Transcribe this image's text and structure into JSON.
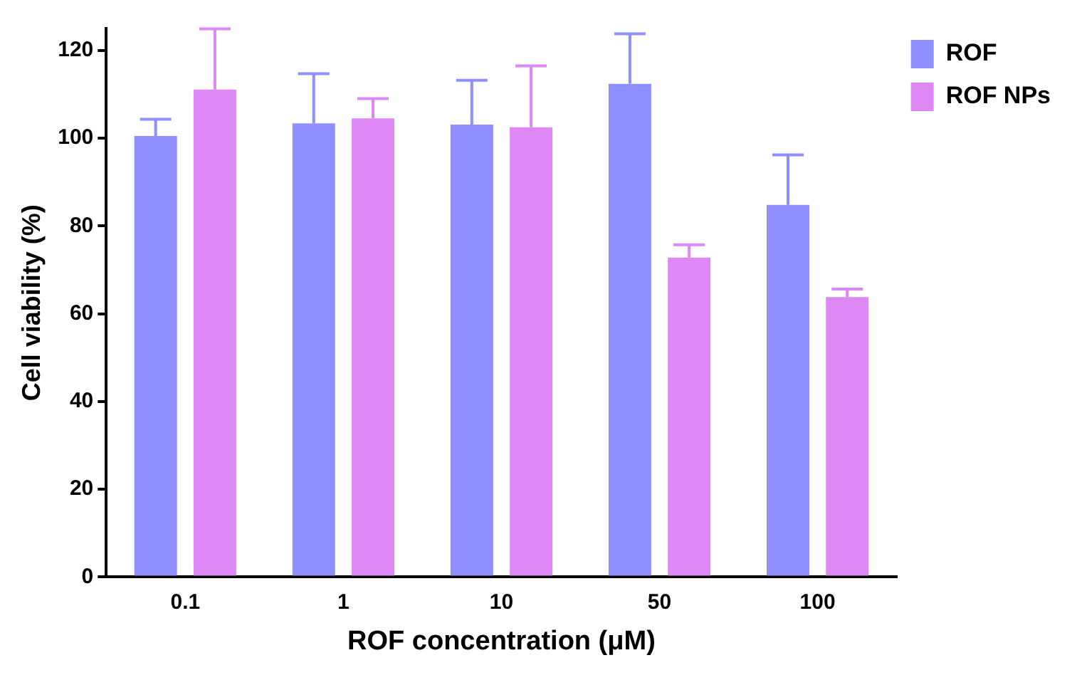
{
  "chart_data": {
    "type": "bar",
    "xlabel": "ROF concentration (μM)",
    "ylabel": "Cell viability (%)",
    "categories": [
      "0.1",
      "1",
      "10",
      "50",
      "100"
    ],
    "series": [
      {
        "name": "ROF",
        "color": "#8f8fff",
        "values": [
          100.5,
          103.4,
          103.1,
          112.4,
          84.8
        ],
        "errors": [
          [
            100.5,
            104.3
          ],
          [
            103.4,
            114.7
          ],
          [
            103.1,
            113.2
          ],
          [
            112.4,
            123.8
          ],
          [
            84.8,
            96.2
          ]
        ]
      },
      {
        "name": "ROF NPs",
        "color": "#dd88f5",
        "values": [
          111.1,
          104.5,
          102.5,
          72.8,
          63.8
        ],
        "errors": [
          [
            111.1,
            124.9
          ],
          [
            104.5,
            109.0
          ],
          [
            102.5,
            116.5
          ],
          [
            72.8,
            75.7
          ],
          [
            63.8,
            65.6
          ]
        ]
      }
    ],
    "ylim": [
      0,
      125
    ],
    "yticks": [
      0,
      20,
      40,
      60,
      80,
      100,
      120
    ],
    "grid": false,
    "legend": "top right"
  }
}
